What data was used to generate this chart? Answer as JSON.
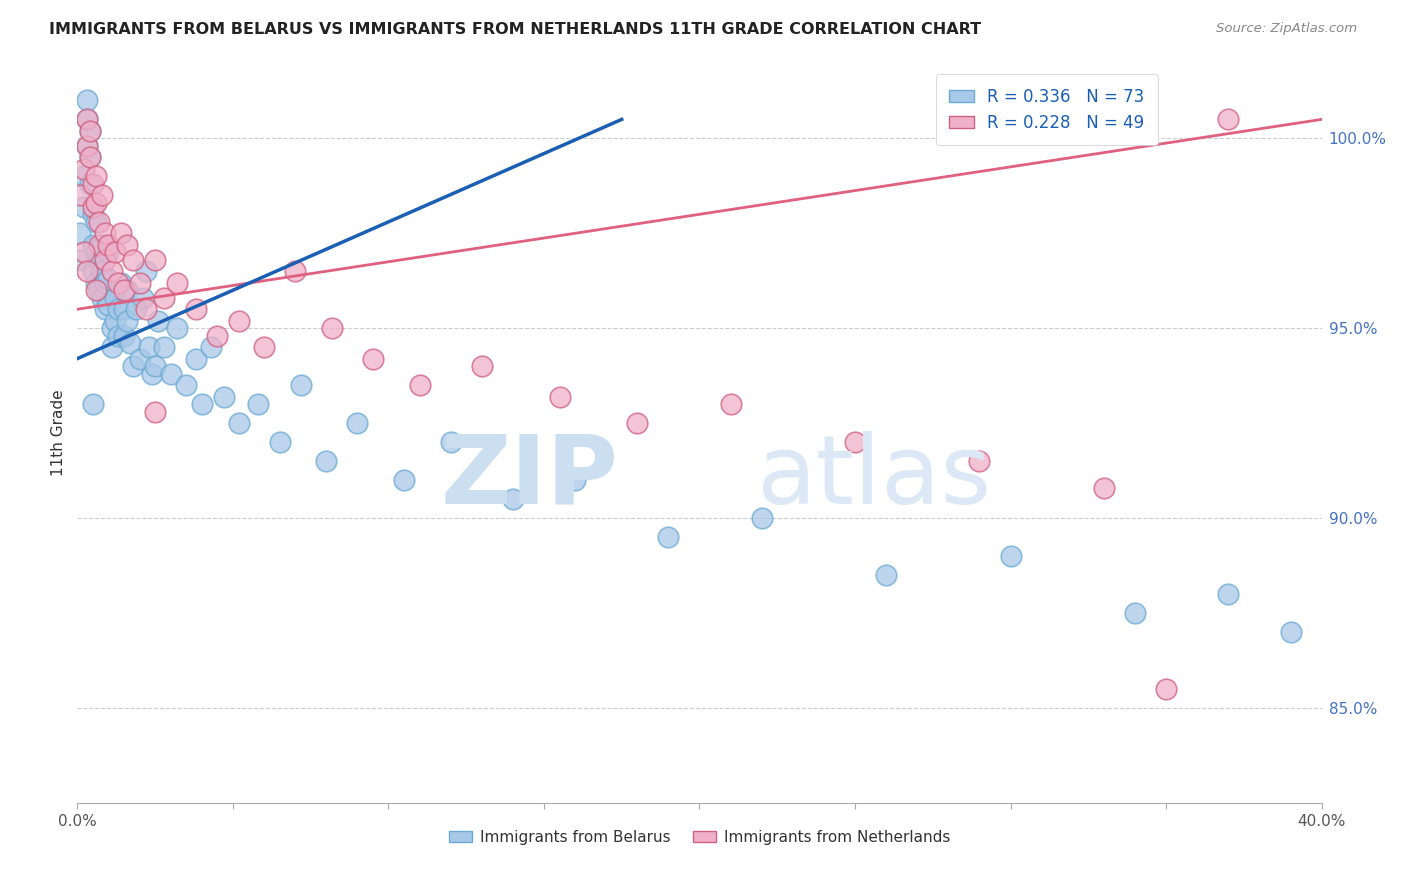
{
  "title": "IMMIGRANTS FROM BELARUS VS IMMIGRANTS FROM NETHERLANDS 11TH GRADE CORRELATION CHART",
  "source": "Source: ZipAtlas.com",
  "ylabel": "11th Grade",
  "y_ticks": [
    85.0,
    90.0,
    95.0,
    100.0
  ],
  "y_tick_labels": [
    "85.0%",
    "90.0%",
    "95.0%",
    "100.0%"
  ],
  "x_range": [
    0.0,
    0.4
  ],
  "y_range": [
    82.5,
    102.0
  ],
  "legend1_R": "0.336",
  "legend1_N": "73",
  "legend2_R": "0.228",
  "legend2_N": "49",
  "color_belarus": "#a8c8e8",
  "color_netherlands": "#f0b0c8",
  "line_color_belarus": "#1a5fb4",
  "line_color_netherlands": "#e06080",
  "belarus_line_x": [
    0.0,
    0.175
  ],
  "belarus_line_y": [
    94.2,
    100.5
  ],
  "netherlands_line_x": [
    0.0,
    0.4
  ],
  "netherlands_line_y": [
    95.5,
    100.5
  ],
  "belarus_x": [
    0.001,
    0.001,
    0.002,
    0.002,
    0.003,
    0.003,
    0.003,
    0.004,
    0.004,
    0.004,
    0.005,
    0.005,
    0.005,
    0.006,
    0.006,
    0.006,
    0.007,
    0.007,
    0.008,
    0.008,
    0.008,
    0.009,
    0.009,
    0.01,
    0.01,
    0.01,
    0.011,
    0.011,
    0.012,
    0.012,
    0.013,
    0.013,
    0.014,
    0.015,
    0.015,
    0.016,
    0.016,
    0.017,
    0.018,
    0.019,
    0.02,
    0.021,
    0.022,
    0.023,
    0.024,
    0.025,
    0.026,
    0.028,
    0.03,
    0.032,
    0.035,
    0.038,
    0.04,
    0.043,
    0.047,
    0.052,
    0.058,
    0.065,
    0.072,
    0.08,
    0.09,
    0.105,
    0.12,
    0.14,
    0.16,
    0.19,
    0.22,
    0.26,
    0.3,
    0.34,
    0.37,
    0.39,
    0.005
  ],
  "belarus_y": [
    96.8,
    97.5,
    98.2,
    99.0,
    99.8,
    100.5,
    101.0,
    100.2,
    99.5,
    98.8,
    98.0,
    97.2,
    96.5,
    97.8,
    97.0,
    96.2,
    96.8,
    96.0,
    97.2,
    96.5,
    95.8,
    96.2,
    95.5,
    97.0,
    96.3,
    95.6,
    95.0,
    94.5,
    95.8,
    95.2,
    95.5,
    94.8,
    96.2,
    95.5,
    94.8,
    96.0,
    95.2,
    94.6,
    94.0,
    95.5,
    94.2,
    95.8,
    96.5,
    94.5,
    93.8,
    94.0,
    95.2,
    94.5,
    93.8,
    95.0,
    93.5,
    94.2,
    93.0,
    94.5,
    93.2,
    92.5,
    93.0,
    92.0,
    93.5,
    91.5,
    92.5,
    91.0,
    92.0,
    90.5,
    91.0,
    89.5,
    90.0,
    88.5,
    89.0,
    87.5,
    88.0,
    87.0,
    93.0
  ],
  "netherlands_x": [
    0.001,
    0.002,
    0.003,
    0.003,
    0.004,
    0.004,
    0.005,
    0.005,
    0.006,
    0.006,
    0.007,
    0.007,
    0.008,
    0.009,
    0.009,
    0.01,
    0.011,
    0.012,
    0.013,
    0.014,
    0.015,
    0.016,
    0.018,
    0.02,
    0.022,
    0.025,
    0.028,
    0.032,
    0.038,
    0.045,
    0.052,
    0.06,
    0.07,
    0.082,
    0.095,
    0.11,
    0.13,
    0.155,
    0.18,
    0.21,
    0.25,
    0.29,
    0.33,
    0.37,
    0.002,
    0.003,
    0.006,
    0.025,
    0.35
  ],
  "netherlands_y": [
    98.5,
    99.2,
    99.8,
    100.5,
    100.2,
    99.5,
    98.8,
    98.2,
    99.0,
    98.3,
    97.8,
    97.2,
    98.5,
    97.5,
    96.8,
    97.2,
    96.5,
    97.0,
    96.2,
    97.5,
    96.0,
    97.2,
    96.8,
    96.2,
    95.5,
    96.8,
    95.8,
    96.2,
    95.5,
    94.8,
    95.2,
    94.5,
    96.5,
    95.0,
    94.2,
    93.5,
    94.0,
    93.2,
    92.5,
    93.0,
    92.0,
    91.5,
    90.8,
    100.5,
    97.0,
    96.5,
    96.0,
    92.8,
    85.5
  ]
}
